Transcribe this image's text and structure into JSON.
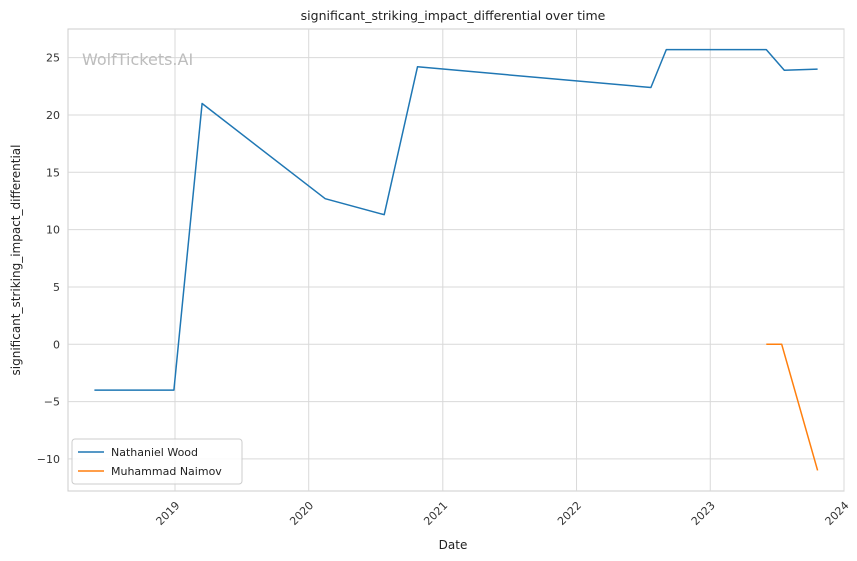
{
  "chart_data": {
    "type": "line",
    "title": "significant_striking_impact_differential over time",
    "xlabel": "Date",
    "ylabel": "significant_striking_impact_differential",
    "watermark": "WolfTickets.AI",
    "x_ticks": [
      "2019",
      "2020",
      "2021",
      "2022",
      "2023",
      "2024"
    ],
    "y_ticks": [
      -10,
      -5,
      0,
      5,
      10,
      15,
      20,
      25
    ],
    "xlim": [
      "2018-03-15",
      "2024-01-01"
    ],
    "ylim": [
      -12.8,
      27.5
    ],
    "grid": true,
    "legend_position": "lower-left",
    "series": [
      {
        "name": "Nathaniel Wood",
        "color": "#1f77b4",
        "points": [
          {
            "x": "2018-05-26",
            "y": -4
          },
          {
            "x": "2018-12-29",
            "y": -4
          },
          {
            "x": "2019-03-16",
            "y": 21
          },
          {
            "x": "2020-02-15",
            "y": 12.7
          },
          {
            "x": "2020-07-25",
            "y": 11.3
          },
          {
            "x": "2020-10-24",
            "y": 24.2
          },
          {
            "x": "2022-07-23",
            "y": 22.4
          },
          {
            "x": "2022-09-03",
            "y": 25.7
          },
          {
            "x": "2023-06-03",
            "y": 25.7
          },
          {
            "x": "2023-07-22",
            "y": 23.9
          },
          {
            "x": "2023-10-21",
            "y": 24
          }
        ]
      },
      {
        "name": "Muhammad Naimov",
        "color": "#ff7f0e",
        "points": [
          {
            "x": "2023-06-03",
            "y": 0
          },
          {
            "x": "2023-07-15",
            "y": 0
          },
          {
            "x": "2023-10-21",
            "y": -11
          }
        ]
      }
    ]
  }
}
